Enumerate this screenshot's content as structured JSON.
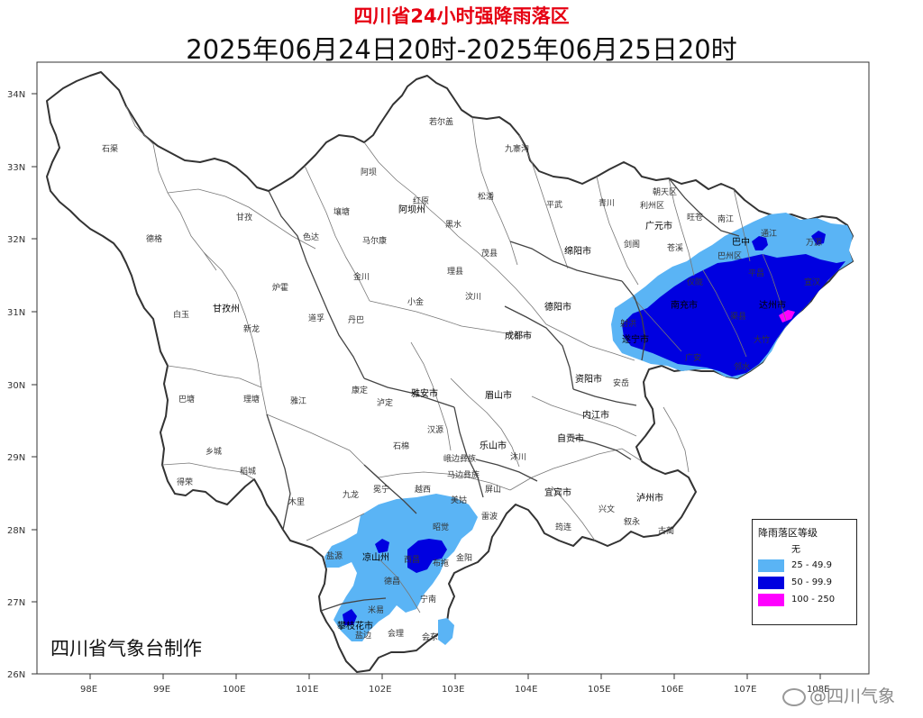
{
  "title": "四川省24小时强降雨落区",
  "subtitle": "2025年06月24日20时-2025年06月25日20时",
  "producer": "四川省气象台制作",
  "watermark": "@四川气象",
  "axes": {
    "lat_ticks": [
      "34N",
      "33N",
      "32N",
      "31N",
      "30N",
      "29N",
      "28N",
      "27N",
      "26N"
    ],
    "lon_ticks": [
      "98E",
      "99E",
      "100E",
      "101E",
      "102E",
      "103E",
      "104E",
      "105E",
      "106E",
      "107E",
      "108E"
    ]
  },
  "legend": {
    "title": "降雨落区等级",
    "items": [
      {
        "label": "无",
        "color": "#ffffff"
      },
      {
        "label": "25 - 49.9",
        "color": "#5ab4f5"
      },
      {
        "label": "50 - 99.9",
        "color": "#0000e0"
      },
      {
        "label": "100 - 250",
        "color": "#ff00ff"
      }
    ]
  },
  "places": {
    "shiqu": "石渠",
    "ruoergai": "若尔盖",
    "jiuzhaigou": "九寨沟",
    "aba": "阿坝",
    "dege": "德格",
    "seda": "色达",
    "ganzi": "甘孜",
    "ganzizhou": "甘孜州",
    "aba_zhou": "阿坝州",
    "hongyuan": "红原",
    "songpan": "松潘",
    "pingwu": "平武",
    "qingchuan": "青川",
    "chaotian": "朝天区",
    "lizhou": "利州区",
    "wangcang": "旺苍",
    "guangyuan": "广元市",
    "nanjiang": "南江",
    "tongjiang": "通江",
    "wanyuan": "万源",
    "bazhong": "巴中",
    "bazhou": "巴州区",
    "mianyang": "绵阳市",
    "jiange": "剑阁",
    "cangxi": "苍溪",
    "yilong": "仪陇",
    "nanchong": "南充市",
    "pingchang": "平昌",
    "dazhou": "达州市",
    "xuanhan": "宣汉",
    "qu": "渠县",
    "dazhu": "大竹",
    "linshui": "邻水",
    "suining": "遂宁市",
    "shehong": "射洪",
    "chengdu": "成都市",
    "deyang": "德阳市",
    "ziyang": "资阳市",
    "neijiang": "内江市",
    "zigong": "自贡市",
    "luzhou": "泸州市",
    "yibin": "宜宾市",
    "leshan": "乐山市",
    "meishan": "眉山市",
    "yaan": "雅安市",
    "kangding": "康定",
    "luding": "泸定",
    "danba": "丹巴",
    "jinchuan": "金川",
    "xiaojin": "小金",
    "maerkang": "马尔康",
    "lixian": "理县",
    "wenchuan": "汶川",
    "maoxian": "茂县",
    "heishui": "黑水",
    "baiyu": "白玉",
    "batang": "巴塘",
    "litang": "理塘",
    "yajiang": "雅江",
    "xiangcheng": "乡城",
    "daocheng": "稻城",
    "derong": "得荣",
    "muli": "木里",
    "jiulong": "九龙",
    "liangshan": "凉山州",
    "xichang": "西昌",
    "yanyuan": "盐源",
    "dechang": "德昌",
    "panzhihua": "攀枝花市",
    "miyi": "米易",
    "huili": "会理",
    "huidong": "会东",
    "ningnan": "宁南",
    "butuo": "布拖",
    "jinyang": "金阳",
    "zhaojue": "昭觉",
    "meigu": "美姑",
    "leibo": "雷波",
    "yuexi": "越西",
    "mianning": "冕宁",
    "shimian": "石棉",
    "hanyuan": "汉源",
    "luhuo": "炉霍",
    "daofu": "道孚",
    "xinlong": "新龙",
    "rangtang": "壤塘",
    "guangan": "广安",
    "anyue": "安岳",
    "xingwen": "兴文",
    "gulin": "古蔺",
    "xuyong": "叙永",
    "junlian": "筠连",
    "pingshan": "屏山",
    "muchuan": "沐川",
    "mabian": "马边彝族",
    "ebian": "峨边彝族",
    "ningnan2": "宁南",
    "yanbian": "盐边"
  }
}
